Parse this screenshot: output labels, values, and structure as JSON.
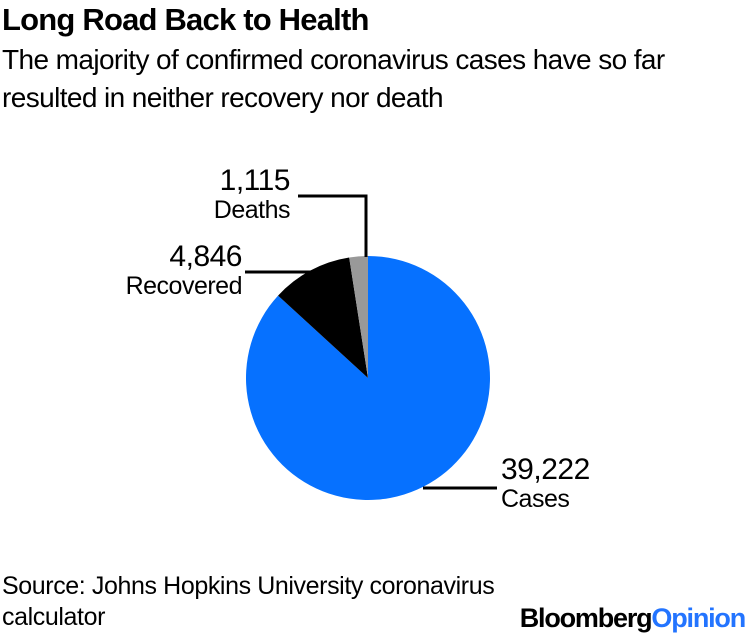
{
  "header": {
    "title": "Long Road Back to Health",
    "subtitle": "The majority of confirmed coronavirus cases have so far\nresulted in neither recovery nor death"
  },
  "chart_data": {
    "type": "pie",
    "title": "Long Road Back to Health",
    "subtitle": "The majority of confirmed coronavirus cases have so far resulted in neither recovery nor death",
    "start_angle": "top",
    "direction": "clockwise",
    "legend_position": "callout-labels-with-leader-lines",
    "slices": [
      {
        "label": "Cases",
        "value": 39222,
        "display": "39,222",
        "color": "#0671ff"
      },
      {
        "label": "Recovered",
        "value": 4846,
        "display": "4,846",
        "color": "#000000"
      },
      {
        "label": "Deaths",
        "value": 1115,
        "display": "1,115",
        "color": "#999999"
      }
    ]
  },
  "footer": {
    "source": "Source: Johns Hopkins University coronavirus\ncalculator",
    "logo": {
      "part1": "Bloomberg",
      "part2": "Opinion",
      "part1_color": "#000000",
      "part2_color": "#2374ff"
    }
  },
  "colors": {
    "background": "#ffffff",
    "pie_blue": "#0671ff",
    "pie_black": "#000000",
    "pie_gray": "#999999",
    "leader_line": "#000000"
  }
}
